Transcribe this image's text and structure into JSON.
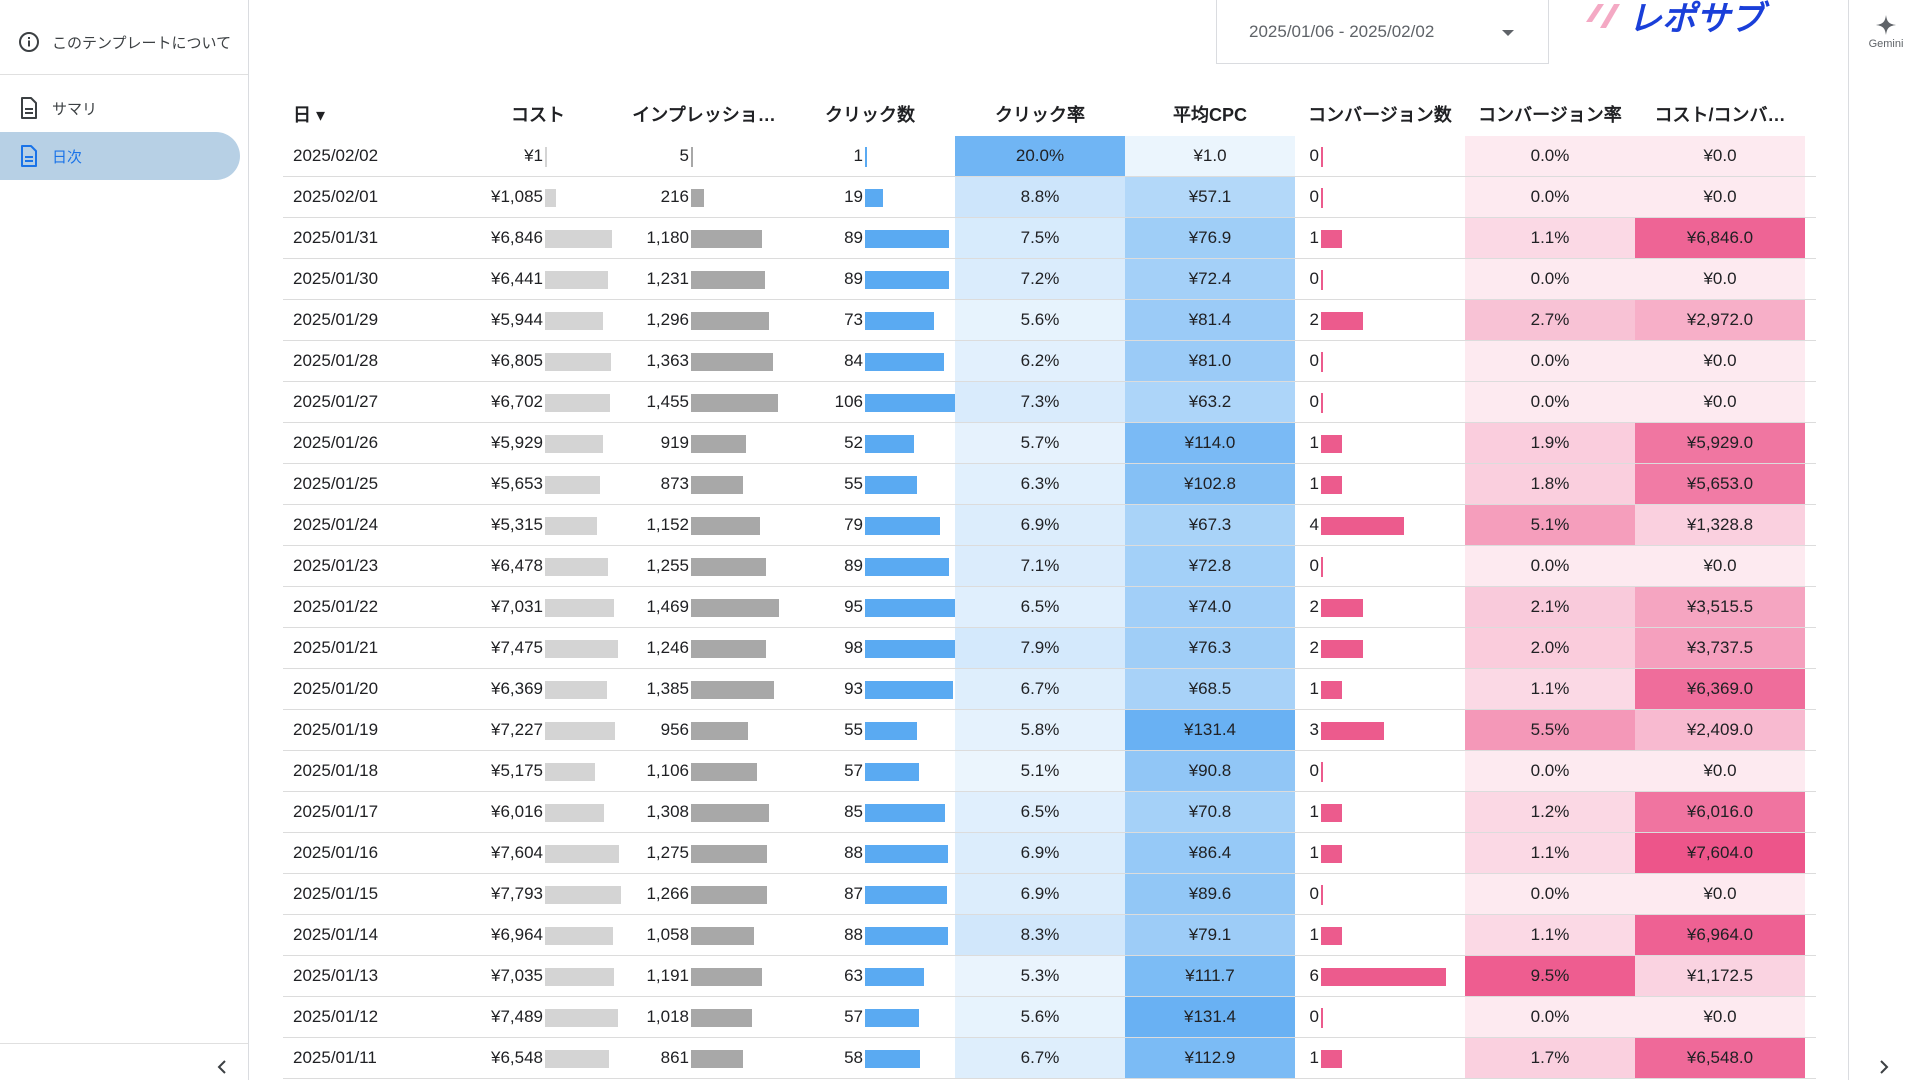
{
  "sidebar": {
    "items": [
      {
        "label": "このテンプレートについて",
        "icon": "info-icon"
      },
      {
        "label": "サマリ",
        "icon": "document-icon"
      },
      {
        "label": "日次",
        "icon": "document-icon"
      }
    ],
    "active_index": 2
  },
  "header": {
    "date_range": "2025/01/06 - 2025/02/02",
    "logo_text": "レポサブ",
    "logo_colors": [
      "#f4a9c4",
      "#1a3fd9"
    ]
  },
  "right_rail": {
    "gemini_label": "Gemini"
  },
  "colors": {
    "cost_bar": "#d4d4d4",
    "impr_bar": "#a8a8a8",
    "click_bar": "#5aaaf2",
    "conv_bar": "#ec5b8d",
    "blue_heat_max": "#5aaaf2",
    "pink_heat_max": "#ec4d85"
  },
  "table": {
    "columns": [
      "日 ▾",
      "コスト",
      "インプレッショ…",
      "クリック数",
      "クリック率",
      "平均CPC",
      "コンバージョン数",
      "コンバージョン率",
      "コスト/コンバ…"
    ],
    "rows": [
      {
        "date": "2025/02/02",
        "cost": "¥1",
        "impr": "5",
        "clicks": "1",
        "ctr": "20.0%",
        "cpc": "¥1.0",
        "conv": "0",
        "cvr": "0.0%",
        "cpa": "¥0.0"
      },
      {
        "date": "2025/02/01",
        "cost": "¥1,085",
        "impr": "216",
        "clicks": "19",
        "ctr": "8.8%",
        "cpc": "¥57.1",
        "conv": "0",
        "cvr": "0.0%",
        "cpa": "¥0.0"
      },
      {
        "date": "2025/01/31",
        "cost": "¥6,846",
        "impr": "1,180",
        "clicks": "89",
        "ctr": "7.5%",
        "cpc": "¥76.9",
        "conv": "1",
        "cvr": "1.1%",
        "cpa": "¥6,846.0"
      },
      {
        "date": "2025/01/30",
        "cost": "¥6,441",
        "impr": "1,231",
        "clicks": "89",
        "ctr": "7.2%",
        "cpc": "¥72.4",
        "conv": "0",
        "cvr": "0.0%",
        "cpa": "¥0.0"
      },
      {
        "date": "2025/01/29",
        "cost": "¥5,944",
        "impr": "1,296",
        "clicks": "73",
        "ctr": "5.6%",
        "cpc": "¥81.4",
        "conv": "2",
        "cvr": "2.7%",
        "cpa": "¥2,972.0"
      },
      {
        "date": "2025/01/28",
        "cost": "¥6,805",
        "impr": "1,363",
        "clicks": "84",
        "ctr": "6.2%",
        "cpc": "¥81.0",
        "conv": "0",
        "cvr": "0.0%",
        "cpa": "¥0.0"
      },
      {
        "date": "2025/01/27",
        "cost": "¥6,702",
        "impr": "1,455",
        "clicks": "106",
        "ctr": "7.3%",
        "cpc": "¥63.2",
        "conv": "0",
        "cvr": "0.0%",
        "cpa": "¥0.0"
      },
      {
        "date": "2025/01/26",
        "cost": "¥5,929",
        "impr": "919",
        "clicks": "52",
        "ctr": "5.7%",
        "cpc": "¥114.0",
        "conv": "1",
        "cvr": "1.9%",
        "cpa": "¥5,929.0"
      },
      {
        "date": "2025/01/25",
        "cost": "¥5,653",
        "impr": "873",
        "clicks": "55",
        "ctr": "6.3%",
        "cpc": "¥102.8",
        "conv": "1",
        "cvr": "1.8%",
        "cpa": "¥5,653.0"
      },
      {
        "date": "2025/01/24",
        "cost": "¥5,315",
        "impr": "1,152",
        "clicks": "79",
        "ctr": "6.9%",
        "cpc": "¥67.3",
        "conv": "4",
        "cvr": "5.1%",
        "cpa": "¥1,328.8"
      },
      {
        "date": "2025/01/23",
        "cost": "¥6,478",
        "impr": "1,255",
        "clicks": "89",
        "ctr": "7.1%",
        "cpc": "¥72.8",
        "conv": "0",
        "cvr": "0.0%",
        "cpa": "¥0.0"
      },
      {
        "date": "2025/01/22",
        "cost": "¥7,031",
        "impr": "1,469",
        "clicks": "95",
        "ctr": "6.5%",
        "cpc": "¥74.0",
        "conv": "2",
        "cvr": "2.1%",
        "cpa": "¥3,515.5"
      },
      {
        "date": "2025/01/21",
        "cost": "¥7,475",
        "impr": "1,246",
        "clicks": "98",
        "ctr": "7.9%",
        "cpc": "¥76.3",
        "conv": "2",
        "cvr": "2.0%",
        "cpa": "¥3,737.5"
      },
      {
        "date": "2025/01/20",
        "cost": "¥6,369",
        "impr": "1,385",
        "clicks": "93",
        "ctr": "6.7%",
        "cpc": "¥68.5",
        "conv": "1",
        "cvr": "1.1%",
        "cpa": "¥6,369.0"
      },
      {
        "date": "2025/01/19",
        "cost": "¥7,227",
        "impr": "956",
        "clicks": "55",
        "ctr": "5.8%",
        "cpc": "¥131.4",
        "conv": "3",
        "cvr": "5.5%",
        "cpa": "¥2,409.0"
      },
      {
        "date": "2025/01/18",
        "cost": "¥5,175",
        "impr": "1,106",
        "clicks": "57",
        "ctr": "5.1%",
        "cpc": "¥90.8",
        "conv": "0",
        "cvr": "0.0%",
        "cpa": "¥0.0"
      },
      {
        "date": "2025/01/17",
        "cost": "¥6,016",
        "impr": "1,308",
        "clicks": "85",
        "ctr": "6.5%",
        "cpc": "¥70.8",
        "conv": "1",
        "cvr": "1.2%",
        "cpa": "¥6,016.0"
      },
      {
        "date": "2025/01/16",
        "cost": "¥7,604",
        "impr": "1,275",
        "clicks": "88",
        "ctr": "6.9%",
        "cpc": "¥86.4",
        "conv": "1",
        "cvr": "1.1%",
        "cpa": "¥7,604.0"
      },
      {
        "date": "2025/01/15",
        "cost": "¥7,793",
        "impr": "1,266",
        "clicks": "87",
        "ctr": "6.9%",
        "cpc": "¥89.6",
        "conv": "0",
        "cvr": "0.0%",
        "cpa": "¥0.0"
      },
      {
        "date": "2025/01/14",
        "cost": "¥6,964",
        "impr": "1,058",
        "clicks": "88",
        "ctr": "8.3%",
        "cpc": "¥79.1",
        "conv": "1",
        "cvr": "1.1%",
        "cpa": "¥6,964.0"
      },
      {
        "date": "2025/01/13",
        "cost": "¥7,035",
        "impr": "1,191",
        "clicks": "63",
        "ctr": "5.3%",
        "cpc": "¥111.7",
        "conv": "6",
        "cvr": "9.5%",
        "cpa": "¥1,172.5"
      },
      {
        "date": "2025/01/12",
        "cost": "¥7,489",
        "impr": "1,018",
        "clicks": "57",
        "ctr": "5.6%",
        "cpc": "¥131.4",
        "conv": "0",
        "cvr": "0.0%",
        "cpa": "¥0.0"
      },
      {
        "date": "2025/01/11",
        "cost": "¥6,548",
        "impr": "861",
        "clicks": "58",
        "ctr": "6.7%",
        "cpc": "¥112.9",
        "conv": "1",
        "cvr": "1.7%",
        "cpa": "¥6,548.0"
      }
    ]
  }
}
